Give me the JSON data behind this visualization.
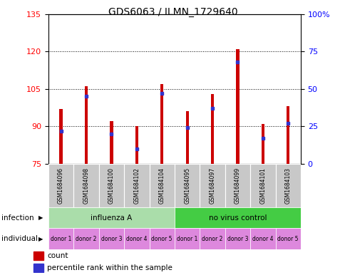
{
  "title": "GDS6063 / ILMN_1729640",
  "samples": [
    "GSM1684096",
    "GSM1684098",
    "GSM1684100",
    "GSM1684102",
    "GSM1684104",
    "GSM1684095",
    "GSM1684097",
    "GSM1684099",
    "GSM1684101",
    "GSM1684103"
  ],
  "bar_values": [
    97,
    106,
    92,
    90,
    107,
    96,
    103,
    121,
    91,
    98
  ],
  "percentile_values": [
    22,
    45,
    20,
    10,
    47,
    24,
    37,
    68,
    17,
    27
  ],
  "ymin": 75,
  "ymax": 135,
  "yticks_left": [
    75,
    90,
    105,
    120,
    135
  ],
  "yticks_right": [
    0,
    25,
    50,
    75,
    100
  ],
  "bar_color": "#cc0000",
  "blue_color": "#3333cc",
  "plot_bg": "#ffffff",
  "infection_groups": [
    {
      "label": "influenza A",
      "start": 0,
      "end": 5,
      "color": "#aaddaa"
    },
    {
      "label": "no virus control",
      "start": 5,
      "end": 10,
      "color": "#44cc44"
    }
  ],
  "individual_labels": [
    "donor 1",
    "donor 2",
    "donor 3",
    "donor 4",
    "donor 5",
    "donor 1",
    "donor 2",
    "donor 3",
    "donor 4",
    "donor 5"
  ],
  "individual_color": "#dd88dd",
  "infection_label": "infection",
  "individual_row_label": "individual",
  "legend_count": "count",
  "legend_percentile": "percentile rank within the sample",
  "bar_width": 0.12,
  "sample_label_gray": "#c8c8c8",
  "gridline_ticks": [
    90,
    105,
    120
  ]
}
